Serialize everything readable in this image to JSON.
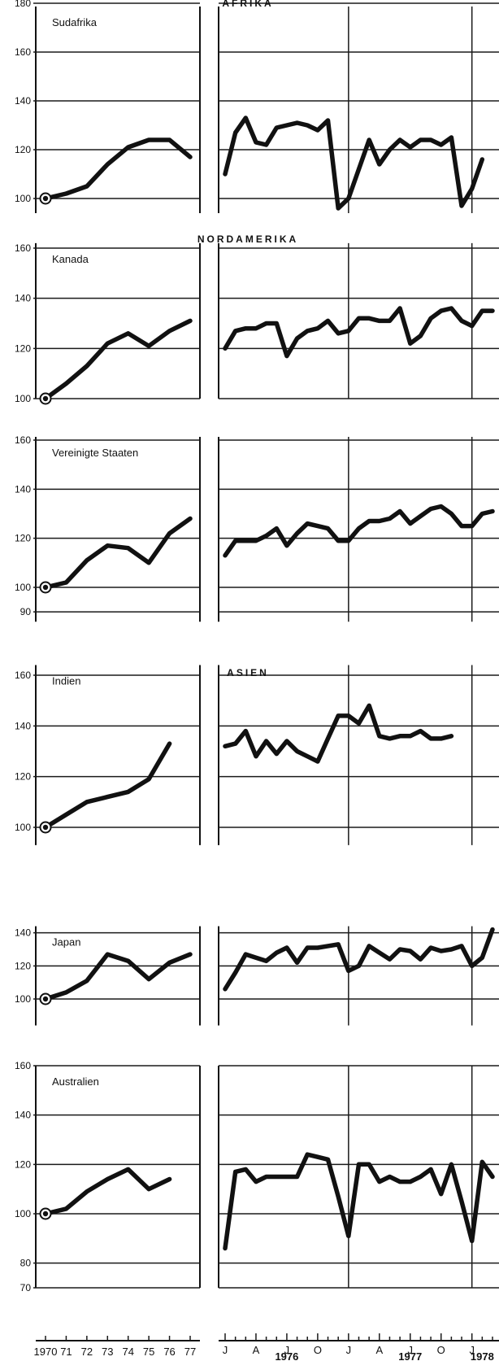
{
  "chart_data": {
    "type": "line",
    "regions": [
      {
        "name": "AFRIKA",
        "panel": 0
      },
      {
        "name": "NORDAMERIKA",
        "panel": 1
      },
      {
        "name": "ASIEN",
        "panel": 3
      }
    ],
    "annual_x_labels": [
      "1970",
      "71",
      "72",
      "73",
      "74",
      "75",
      "76",
      "77"
    ],
    "monthly_x_labels": [
      "J",
      "A",
      "J",
      "O",
      "J",
      "A",
      "J",
      "O",
      "J"
    ],
    "year_labels": [
      {
        "text": "1976",
        "month": 6
      },
      {
        "text": "1977",
        "month": 18
      },
      {
        "text": "1978",
        "month": 25
      }
    ],
    "panels": [
      {
        "name": "Sudafrika",
        "yticks": [
          100,
          120,
          140,
          160,
          180
        ],
        "ylim": [
          94,
          180
        ],
        "annual": {
          "x": [
            1970,
            1971,
            1972,
            1973,
            1974,
            1975,
            1976,
            1977
          ],
          "values": [
            100,
            102,
            105,
            114,
            121,
            124,
            124,
            117
          ]
        },
        "monthly": {
          "values": [
            110,
            127,
            133,
            123,
            122,
            129,
            130,
            131,
            130,
            128,
            132,
            96,
            100,
            112,
            124,
            114,
            120,
            124,
            121,
            124,
            124,
            122,
            125,
            97,
            104,
            116
          ]
        }
      },
      {
        "name": "Kanada",
        "yticks": [
          100,
          120,
          140,
          160
        ],
        "ylim": [
          100,
          162
        ],
        "annual": {
          "x": [
            1970,
            1971,
            1972,
            1973,
            1974,
            1975,
            1976,
            1977
          ],
          "values": [
            100,
            106,
            113,
            122,
            126,
            121,
            127,
            131
          ]
        },
        "monthly": {
          "values": [
            120,
            127,
            128,
            128,
            130,
            130,
            117,
            124,
            127,
            128,
            131,
            126,
            127,
            132,
            132,
            131,
            131,
            136,
            122,
            125,
            132,
            135,
            136,
            131,
            129,
            135,
            135
          ]
        }
      },
      {
        "name": "Vereinigte Staaten",
        "yticks": [
          90,
          100,
          120,
          140,
          160
        ],
        "ylim": [
          86,
          162
        ],
        "annual": {
          "x": [
            1970,
            1971,
            1972,
            1973,
            1974,
            1975,
            1976,
            1977
          ],
          "values": [
            100,
            102,
            111,
            117,
            116,
            110,
            122,
            128
          ]
        },
        "monthly": {
          "values": [
            113,
            119,
            119,
            119,
            121,
            124,
            117,
            122,
            126,
            125,
            124,
            119,
            119,
            124,
            127,
            127,
            128,
            131,
            126,
            129,
            132,
            133,
            130,
            125,
            125,
            130,
            131
          ]
        }
      },
      {
        "name": "Indien",
        "yticks": [
          100,
          120,
          140,
          160
        ],
        "ylim": [
          93,
          164
        ],
        "annual": {
          "x": [
            1970,
            1971,
            1972,
            1973,
            1974,
            1975,
            1976
          ],
          "values": [
            100,
            105,
            110,
            112,
            114,
            119,
            133
          ]
        },
        "monthly": {
          "values": [
            132,
            133,
            138,
            128,
            134,
            129,
            134,
            130,
            128,
            126,
            135,
            144,
            144,
            141,
            148,
            136,
            135,
            136,
            136,
            138,
            135,
            135,
            136
          ]
        }
      },
      {
        "name": "Japan",
        "yticks": [
          100,
          120,
          140
        ],
        "ylim": [
          84,
          144
        ],
        "annual": {
          "x": [
            1970,
            1971,
            1972,
            1973,
            1974,
            1975,
            1976,
            1977
          ],
          "values": [
            100,
            104,
            111,
            127,
            123,
            112,
            122,
            127
          ]
        },
        "monthly": {
          "values": [
            106,
            116,
            127,
            125,
            123,
            128,
            131,
            122,
            131,
            131,
            132,
            133,
            117,
            120,
            132,
            128,
            124,
            130,
            129,
            124,
            131,
            129,
            130,
            132,
            120,
            125,
            142
          ]
        }
      },
      {
        "name": "Australien",
        "yticks": [
          70,
          80,
          100,
          120,
          140,
          160
        ],
        "ylim": [
          70,
          163
        ],
        "annual": {
          "x": [
            1970,
            1971,
            1972,
            1973,
            1974,
            1975,
            1976
          ],
          "values": [
            100,
            102,
            109,
            114,
            118,
            110,
            114
          ]
        },
        "monthly": {
          "values": [
            86,
            117,
            118,
            113,
            115,
            115,
            115,
            115,
            124,
            123,
            122,
            107,
            91,
            120,
            120,
            113,
            115,
            113,
            113,
            115,
            118,
            108,
            120,
            105,
            89,
            121,
            115
          ]
        }
      }
    ]
  }
}
